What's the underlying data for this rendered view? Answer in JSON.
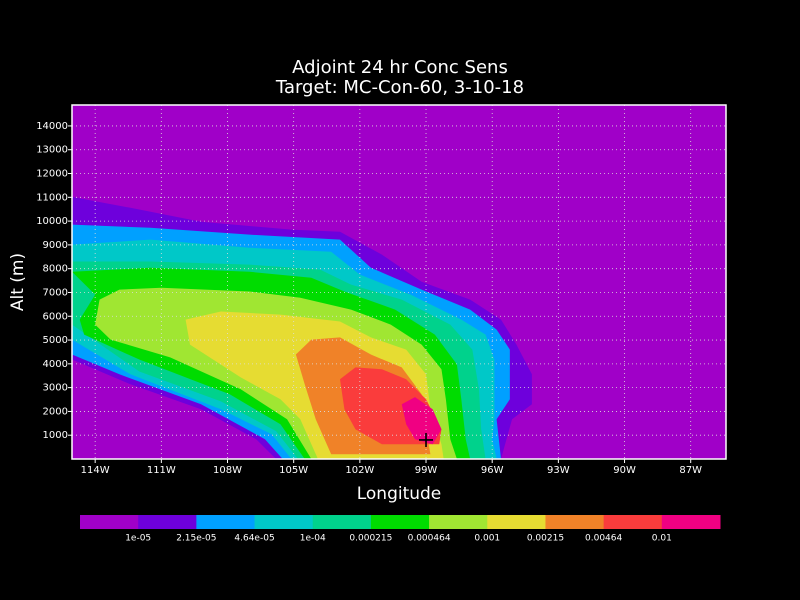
{
  "chart_data": {
    "type": "contour",
    "title": "Adjoint 24 hr Conc Sens",
    "subtitle": "Target: MC-Con-60, 3-10-18",
    "xlabel": "Longitude",
    "ylabel": "Alt (m)",
    "xlim": [
      -115.05,
      -85.4
    ],
    "ylim": [
      0,
      14880
    ],
    "xticks": [
      {
        "value": -114,
        "label": "114W"
      },
      {
        "value": -111,
        "label": "111W"
      },
      {
        "value": -108,
        "label": "108W"
      },
      {
        "value": -105,
        "label": "105W"
      },
      {
        "value": -102,
        "label": "102W"
      },
      {
        "value": -99,
        "label": "99W"
      },
      {
        "value": -96,
        "label": "96W"
      },
      {
        "value": -93,
        "label": "93W"
      },
      {
        "value": -90,
        "label": "90W"
      },
      {
        "value": -87,
        "label": "87W"
      }
    ],
    "yticks": [
      1000,
      2000,
      3000,
      4000,
      5000,
      6000,
      7000,
      8000,
      9000,
      10000,
      11000,
      12000,
      13000,
      14000
    ],
    "grid": true,
    "colors": [
      "#a000c8",
      "#6e00dc",
      "#00a0ff",
      "#00c8c8",
      "#00d28c",
      "#00dc00",
      "#a0e632",
      "#e6dc32",
      "#f08228",
      "#fa3c3c",
      "#f00082"
    ],
    "levels": [
      {
        "value": 1e-05,
        "label": "1e-05"
      },
      {
        "value": 2.15e-05,
        "label": "2.15e-05"
      },
      {
        "value": 4.64e-05,
        "label": "4.64e-05"
      },
      {
        "value": 0.0001,
        "label": "1e-04"
      },
      {
        "value": 0.000215,
        "label": "0.000215"
      },
      {
        "value": 0.000464,
        "label": "0.000464"
      },
      {
        "value": 0.001,
        "label": "0.001"
      },
      {
        "value": 0.00215,
        "label": "0.00215"
      },
      {
        "value": 0.00464,
        "label": "0.00464"
      },
      {
        "value": 0.01,
        "label": "0.01"
      }
    ],
    "contours": [
      {
        "level": 1e-05,
        "points": [
          [
            -115.05,
            11020
          ],
          [
            -112.4,
            10560
          ],
          [
            -109.2,
            9970
          ],
          [
            -105.1,
            9640
          ],
          [
            -102.9,
            9550
          ],
          [
            -101.0,
            8590
          ],
          [
            -99.2,
            7450
          ],
          [
            -97.0,
            6700
          ],
          [
            -95.6,
            5860
          ],
          [
            -94.9,
            4810
          ],
          [
            -94.2,
            3560
          ],
          [
            -94.2,
            2300
          ],
          [
            -95.1,
            1670
          ],
          [
            -95.6,
            0
          ],
          [
            -105.8,
            0
          ],
          [
            -106.7,
            830
          ],
          [
            -109.2,
            2090
          ],
          [
            -112.4,
            3140
          ],
          [
            -115.05,
            4180
          ]
        ]
      },
      {
        "level": 2.15e-05,
        "points": [
          [
            -115.05,
            9850
          ],
          [
            -111.5,
            9720
          ],
          [
            -107.0,
            9430
          ],
          [
            -102.9,
            9220
          ],
          [
            -101.5,
            8040
          ],
          [
            -99.2,
            7120
          ],
          [
            -97.0,
            6280
          ],
          [
            -95.8,
            5440
          ],
          [
            -95.2,
            4600
          ],
          [
            -95.2,
            2510
          ],
          [
            -95.8,
            1670
          ],
          [
            -95.6,
            0
          ],
          [
            -105.5,
            0
          ],
          [
            -106.3,
            830
          ],
          [
            -109.2,
            2300
          ],
          [
            -112.9,
            3560
          ],
          [
            -115.05,
            4390
          ]
        ]
      },
      {
        "level": 4.64e-05,
        "points": [
          [
            -115.05,
            9010
          ],
          [
            -111.5,
            9220
          ],
          [
            -107.0,
            8880
          ],
          [
            -103.3,
            8710
          ],
          [
            -102.0,
            7750
          ],
          [
            -99.7,
            6910
          ],
          [
            -97.4,
            5860
          ],
          [
            -96.3,
            5230
          ],
          [
            -95.9,
            4180
          ],
          [
            -95.9,
            1670
          ],
          [
            -96.0,
            830
          ],
          [
            -95.8,
            0
          ],
          [
            -105.1,
            0
          ],
          [
            -106.0,
            1040
          ],
          [
            -108.3,
            2090
          ],
          [
            -112.4,
            3560
          ],
          [
            -115.05,
            5020
          ]
        ]
      },
      {
        "level": 0.0001,
        "points": [
          [
            -115.05,
            8300
          ],
          [
            -111.5,
            8300
          ],
          [
            -107.0,
            8170
          ],
          [
            -103.8,
            7960
          ],
          [
            -102.4,
            7330
          ],
          [
            -100.1,
            6700
          ],
          [
            -97.9,
            5650
          ],
          [
            -96.9,
            4600
          ],
          [
            -96.6,
            2930
          ],
          [
            -96.5,
            1250
          ],
          [
            -96.3,
            0
          ],
          [
            -104.8,
            0
          ],
          [
            -105.8,
            1170
          ],
          [
            -108.3,
            2420
          ],
          [
            -112.0,
            3680
          ],
          [
            -115.05,
            5650
          ]
        ]
      },
      {
        "level": 0.000215,
        "points": [
          [
            -115.05,
            7870
          ],
          [
            -111.5,
            8040
          ],
          [
            -107.0,
            7870
          ],
          [
            -104.2,
            7620
          ],
          [
            -102.7,
            7040
          ],
          [
            -100.4,
            6280
          ],
          [
            -98.6,
            5230
          ],
          [
            -97.6,
            3980
          ],
          [
            -97.4,
            2510
          ],
          [
            -97.2,
            830
          ],
          [
            -97.0,
            0
          ],
          [
            -104.5,
            0
          ],
          [
            -105.6,
            1460
          ],
          [
            -107.9,
            2720
          ],
          [
            -112.0,
            4180
          ],
          [
            -114.5,
            5230
          ],
          [
            -114.7,
            5860
          ],
          [
            -114.0,
            6910
          ]
        ]
      },
      {
        "level": 0.000464,
        "points": [
          [
            -113.8,
            6700
          ],
          [
            -112.9,
            7120
          ],
          [
            -111.0,
            7200
          ],
          [
            -107.0,
            7040
          ],
          [
            -104.7,
            6780
          ],
          [
            -102.4,
            6280
          ],
          [
            -100.6,
            5650
          ],
          [
            -99.2,
            4810
          ],
          [
            -98.3,
            3770
          ],
          [
            -98.1,
            2510
          ],
          [
            -97.9,
            830
          ],
          [
            -97.6,
            0
          ],
          [
            -104.2,
            0
          ],
          [
            -105.3,
            1670
          ],
          [
            -107.4,
            2930
          ],
          [
            -110.6,
            4270
          ],
          [
            -113.3,
            5020
          ],
          [
            -114.0,
            5650
          ]
        ]
      },
      {
        "level": 0.001,
        "points": [
          [
            -109.9,
            5860
          ],
          [
            -108.3,
            6200
          ],
          [
            -105.6,
            6070
          ],
          [
            -102.9,
            5780
          ],
          [
            -101.5,
            5110
          ],
          [
            -99.9,
            4600
          ],
          [
            -99.0,
            3560
          ],
          [
            -98.8,
            2090
          ],
          [
            -98.3,
            620
          ],
          [
            -98.2,
            0
          ],
          [
            -103.9,
            0
          ],
          [
            -104.7,
            1670
          ],
          [
            -105.6,
            2510
          ],
          [
            -107.4,
            3430
          ],
          [
            -109.7,
            4810
          ]
        ]
      },
      {
        "level": 0.00215,
        "points": [
          [
            -104.9,
            4390
          ],
          [
            -104.2,
            5020
          ],
          [
            -102.9,
            5110
          ],
          [
            -101.5,
            4390
          ],
          [
            -100.1,
            3850
          ],
          [
            -99.2,
            2720
          ],
          [
            -99.0,
            1250
          ],
          [
            -98.8,
            200
          ],
          [
            -103.3,
            200
          ],
          [
            -104.0,
            1670
          ],
          [
            -104.5,
            3140
          ]
        ]
      },
      {
        "level": 0.00464,
        "points": [
          [
            -102.9,
            3350
          ],
          [
            -102.2,
            3850
          ],
          [
            -101.0,
            3770
          ],
          [
            -99.9,
            3350
          ],
          [
            -99.0,
            2510
          ],
          [
            -98.3,
            1250
          ],
          [
            -98.4,
            620
          ],
          [
            -101.0,
            620
          ],
          [
            -102.2,
            1250
          ],
          [
            -102.7,
            2090
          ]
        ]
      },
      {
        "level": 0.01,
        "points": [
          [
            -100.1,
            2300
          ],
          [
            -99.5,
            2600
          ],
          [
            -98.7,
            2090
          ],
          [
            -98.3,
            1250
          ],
          [
            -98.7,
            620
          ],
          [
            -99.5,
            830
          ],
          [
            -99.9,
            1460
          ]
        ]
      }
    ],
    "target": {
      "lon": -99,
      "alt": 800
    }
  }
}
